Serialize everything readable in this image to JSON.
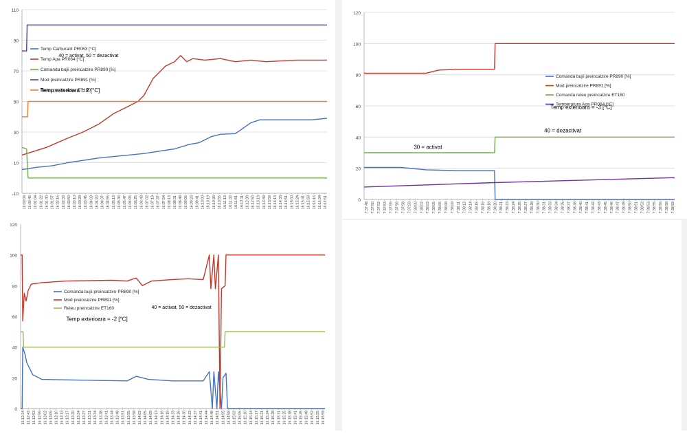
{
  "chart_data": [
    {
      "id": "chart-1",
      "type": "line",
      "ylim": [
        -10,
        110
      ],
      "yticks": [
        -10,
        10,
        30,
        50,
        70,
        90,
        110
      ],
      "grid": true,
      "legend_position": "top-left",
      "annotations": [
        {
          "text": "40 = activat, 50 = dezactivat",
          "x": 0.12,
          "y": 79,
          "size": 7
        },
        {
          "text": "Temp exterioara = 2 [°C]",
          "x": 0.06,
          "y": 56,
          "size": 8
        }
      ],
      "x_labels": [
        "16:00:09",
        "16:00:46",
        "16:01:04",
        "16:01:22",
        "16:01:40",
        "16:01:57",
        "16:02:15",
        "16:02:33",
        "16:02:50",
        "16:03:10",
        "16:03:28",
        "16:03:45",
        "16:04:03",
        "16:04:20",
        "16:04:37",
        "16:04:55",
        "16:05:13",
        "16:05:30",
        "16:05:47",
        "16:06:05",
        "16:06:25",
        "16:06:43",
        "16:07:02",
        "16:07:19",
        "16:07:37",
        "16:07:54",
        "16:08:13",
        "16:08:31",
        "16:08:48",
        "16:09:06",
        "16:09:23",
        "16:09:41",
        "16:10:00",
        "16:10:19",
        "16:10:36",
        "16:10:55",
        "16:11:13",
        "16:11:32",
        "16:11:51",
        "16:12:11",
        "16:12:30",
        "16:12:50",
        "16:13:19",
        "16:13:39",
        "16:13:59",
        "16:14:13",
        "16:14:33",
        "16:14:51",
        "16:15:00",
        "16:15:24",
        "16:15:41",
        "16:15:59",
        "16:16:16",
        "16:16:34",
        "16:16:51"
      ],
      "series": [
        {
          "name": "Temp Carburant PR063 [°C]",
          "color": "#4472c4",
          "points": [
            [
              0,
              5.5
            ],
            [
              0.05,
              7
            ],
            [
              0.1,
              8
            ],
            [
              0.15,
              10
            ],
            [
              0.2,
              11.5
            ],
            [
              0.25,
              13
            ],
            [
              0.3,
              14
            ],
            [
              0.35,
              15
            ],
            [
              0.4,
              16
            ],
            [
              0.45,
              17.5
            ],
            [
              0.5,
              19
            ],
            [
              0.55,
              22
            ],
            [
              0.58,
              23
            ],
            [
              0.62,
              27
            ],
            [
              0.65,
              28.5
            ],
            [
              0.7,
              29
            ],
            [
              0.75,
              36
            ],
            [
              0.78,
              38
            ],
            [
              0.82,
              38
            ],
            [
              0.88,
              38
            ],
            [
              0.95,
              38
            ],
            [
              1,
              39
            ]
          ]
        },
        {
          "name": "Temp Apa PR064 [°C]",
          "color": "#c0392b",
          "points": [
            [
              0,
              15
            ],
            [
              0.08,
              20
            ],
            [
              0.15,
              26
            ],
            [
              0.2,
              30
            ],
            [
              0.25,
              35
            ],
            [
              0.3,
              42
            ],
            [
              0.35,
              47
            ],
            [
              0.38,
              50
            ],
            [
              0.4,
              54
            ],
            [
              0.43,
              65
            ],
            [
              0.47,
              73
            ],
            [
              0.5,
              76
            ],
            [
              0.52,
              80
            ],
            [
              0.54,
              76
            ],
            [
              0.56,
              78
            ],
            [
              0.6,
              77
            ],
            [
              0.65,
              78
            ],
            [
              0.7,
              76
            ],
            [
              0.75,
              77
            ],
            [
              0.8,
              76
            ],
            [
              0.9,
              77
            ],
            [
              1,
              77
            ]
          ]
        },
        {
          "name": "Comanda bujii preincalzire PR890 [%]",
          "color": "#70ad47",
          "points": [
            [
              0,
              20
            ],
            [
              0.015,
              19
            ],
            [
              0.02,
              0
            ],
            [
              1,
              0
            ]
          ]
        },
        {
          "name": "Mod preincalzire PR891 [%]",
          "color": "#5b3c97",
          "points": [
            [
              0,
              83
            ],
            [
              0.015,
              83
            ],
            [
              0.017,
              100
            ],
            [
              1,
              100
            ]
          ]
        },
        {
          "name": "Releu preincalzire ET160",
          "color": "#ed7d31",
          "points": [
            [
              0,
              40
            ],
            [
              0.018,
              40
            ],
            [
              0.02,
              50
            ],
            [
              1,
              50
            ]
          ]
        }
      ]
    },
    {
      "id": "chart-2",
      "type": "line",
      "ylim": [
        0,
        120
      ],
      "yticks": [
        0,
        20,
        40,
        60,
        80,
        100,
        120
      ],
      "grid": true,
      "legend_position": "right",
      "annotations": [
        {
          "text": "Temp exterioara = -3 [°C]",
          "x": 0.6,
          "y": 58,
          "size": 8
        },
        {
          "text": "40 = dezactivat",
          "x": 0.58,
          "y": 43,
          "size": 8
        },
        {
          "text": "30 = activat",
          "x": 0.16,
          "y": 32.5,
          "size": 8
        }
      ],
      "x_labels": [
        "7:37:48",
        "7:37:50",
        "7:37:52",
        "7:37:53",
        "7:37:55",
        "7:37:56",
        "7:37:58",
        "7:37:59",
        "7:38:00",
        "7:38:02",
        "7:38:03",
        "7:38:05",
        "7:38:06",
        "7:38:08",
        "7:38:09",
        "7:38:11",
        "7:38:12",
        "7:38:14",
        "7:38:15",
        "7:38:16",
        "7:38:18",
        "7:38:20",
        "7:38:21",
        "7:38:23",
        "7:38:24",
        "7:38:25",
        "7:38:27",
        "7:38:28",
        "7:38:30",
        "7:38:31",
        "7:38:33",
        "7:38:34",
        "7:38:35",
        "7:38:37",
        "7:38:38",
        "7:38:40",
        "7:38:41",
        "7:38:42",
        "7:38:43",
        "7:38:45",
        "7:38:46",
        "7:38:47",
        "7:38:49",
        "7:38:50",
        "7:38:51",
        "7:38:52",
        "7:38:53",
        "7:38:55",
        "7:38:56",
        "7:38:58",
        "7:38:59"
      ],
      "series": [
        {
          "name": "Comanda bujii preincalzire PR890 [%]",
          "color": "#4472c4",
          "points": [
            [
              0,
              20.5
            ],
            [
              0.12,
              20.5
            ],
            [
              0.2,
              19
            ],
            [
              0.3,
              18.5
            ],
            [
              0.42,
              18.5
            ],
            [
              0.422,
              0
            ],
            [
              1,
              0
            ]
          ]
        },
        {
          "name": "Mod preincalzire PR891 [%]",
          "color": "#c0392b",
          "points": [
            [
              0,
              81
            ],
            [
              0.1,
              81
            ],
            [
              0.2,
              81
            ],
            [
              0.24,
              83
            ],
            [
              0.3,
              83.5
            ],
            [
              0.42,
              83.5
            ],
            [
              0.422,
              100
            ],
            [
              1,
              100
            ]
          ]
        },
        {
          "name": "Comanda releu preincalzire ET160",
          "color": "#70ad47",
          "points": [
            [
              0,
              30
            ],
            [
              0.42,
              30
            ],
            [
              0.422,
              40
            ],
            [
              1,
              40
            ]
          ]
        },
        {
          "name": "Temperatura Apa PR064 [°C]",
          "color": "#7030a0",
          "points": [
            [
              0,
              8
            ],
            [
              0.42,
              10.8
            ],
            [
              1,
              14
            ]
          ]
        }
      ]
    },
    {
      "id": "chart-3",
      "type": "line",
      "ylim": [
        0,
        120
      ],
      "yticks": [
        0,
        20,
        40,
        60,
        80,
        100,
        120
      ],
      "grid": false,
      "legend_position": "middle",
      "annotations": [
        {
          "text": "40 = activat, 50 = dezactivat",
          "x": 0.43,
          "y": 65,
          "size": 7
        },
        {
          "text": "Temp exterioara = -2 [°C]",
          "x": 0.15,
          "y": 57,
          "size": 8
        }
      ],
      "x_labels": [
        "16:12:34",
        "16:12:43",
        "16:12:53",
        "16:12:59",
        "16:13:02",
        "16:13:06",
        "16:13:10",
        "16:13:13",
        "16:13:17",
        "16:13:20",
        "16:13:24",
        "16:13:27",
        "16:13:31",
        "16:13:34",
        "16:13:38",
        "16:13:41",
        "16:13:44",
        "16:13:48",
        "16:13:51",
        "16:13:55",
        "16:13:58",
        "16:14:02",
        "16:14:05",
        "16:14:09",
        "16:14:13",
        "16:14:16",
        "16:14:19",
        "16:14:23",
        "16:14:26",
        "16:14:30",
        "16:14:33",
        "16:14:37",
        "16:14:41",
        "16:14:44",
        "16:14:48",
        "16:14:51",
        "16:14:55",
        "16:14:58",
        "16:15:02",
        "16:15:06",
        "16:15:10",
        "16:15:14",
        "16:15:17",
        "16:15:21",
        "16:15:24",
        "16:15:28",
        "16:15:31",
        "16:15:35",
        "16:15:38",
        "16:15:41",
        "16:15:45",
        "16:15:48",
        "16:15:52",
        "16:15:55",
        "16:15:59"
      ],
      "series": [
        {
          "name": "Comanda bujii preincalzire PR890 [%]",
          "color": "#4472c4",
          "points": [
            [
              0,
              0
            ],
            [
              0.005,
              0
            ],
            [
              0.007,
              40
            ],
            [
              0.015,
              35
            ],
            [
              0.02,
              30
            ],
            [
              0.04,
              22
            ],
            [
              0.07,
              19
            ],
            [
              0.2,
              18.5
            ],
            [
              0.35,
              18
            ],
            [
              0.38,
              21
            ],
            [
              0.42,
              19
            ],
            [
              0.5,
              18
            ],
            [
              0.6,
              18
            ],
            [
              0.62,
              24
            ],
            [
              0.63,
              0
            ],
            [
              0.635,
              24
            ],
            [
              0.645,
              0
            ],
            [
              0.65,
              24
            ],
            [
              0.66,
              0
            ],
            [
              0.665,
              20
            ],
            [
              0.675,
              23
            ],
            [
              0.68,
              0
            ],
            [
              1,
              0
            ]
          ]
        },
        {
          "name": "Mod preincalzire PR891 [%]",
          "color": "#c0392b",
          "points": [
            [
              0,
              100
            ],
            [
              0.005,
              100
            ],
            [
              0.007,
              57
            ],
            [
              0.012,
              75
            ],
            [
              0.018,
              70
            ],
            [
              0.025,
              77
            ],
            [
              0.035,
              81
            ],
            [
              0.07,
              82
            ],
            [
              0.15,
              83
            ],
            [
              0.3,
              83.5
            ],
            [
              0.35,
              83
            ],
            [
              0.38,
              85
            ],
            [
              0.4,
              80
            ],
            [
              0.43,
              83
            ],
            [
              0.5,
              84
            ],
            [
              0.55,
              84.5
            ],
            [
              0.6,
              84
            ],
            [
              0.62,
              100
            ],
            [
              0.625,
              78
            ],
            [
              0.635,
              100
            ],
            [
              0.64,
              78
            ],
            [
              0.65,
              100
            ],
            [
              0.655,
              0
            ],
            [
              0.66,
              78
            ],
            [
              0.672,
              80
            ],
            [
              0.675,
              100
            ],
            [
              1,
              100
            ]
          ]
        },
        {
          "name": "Releu preincalzire ET160",
          "color": "#9bbb59",
          "points": [
            [
              0,
              50
            ],
            [
              0.008,
              50
            ],
            [
              0.01,
              40
            ],
            [
              0.67,
              40
            ],
            [
              0.672,
              50
            ],
            [
              1,
              50
            ]
          ]
        }
      ]
    }
  ]
}
